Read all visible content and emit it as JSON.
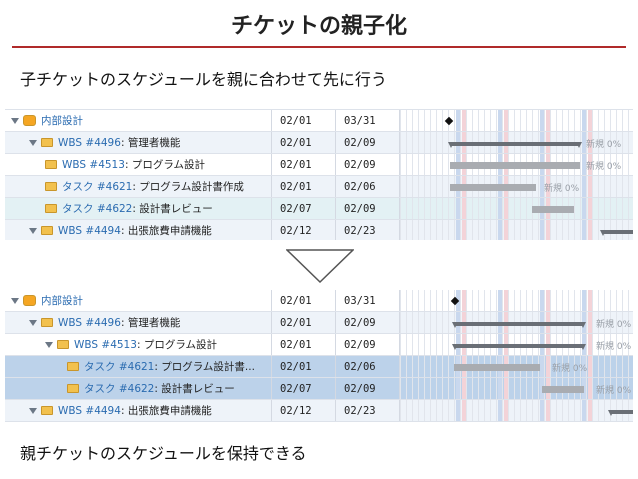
{
  "title": "チケットの親子化",
  "captions": {
    "top": "子チケットのスケジュールを親に合わせて先に行う",
    "bottom": "親チケットのスケジュールを保持できる"
  },
  "colors": {
    "title_rule": "#b02a2a",
    "selected_row": "#bcd2ea",
    "highlight_row": "#e3f1f4"
  },
  "before": {
    "rows": [
      {
        "ident": "",
        "label": "内部設計",
        "start": "02/01",
        "end": "03/31",
        "status": ""
      },
      {
        "ident": "WBS #4496",
        "label": ": 管理者機能",
        "start": "02/01",
        "end": "02/09",
        "status": "新規 0%"
      },
      {
        "ident": "WBS #4513",
        "label": ": プログラム設計",
        "start": "02/01",
        "end": "02/09",
        "status": "新規 0%"
      },
      {
        "ident": "タスク #4621",
        "label": ": プログラム設計書作成",
        "start": "02/01",
        "end": "02/06",
        "status": "新規 0%"
      },
      {
        "ident": "タスク #4622",
        "label": ": 設計書レビュー",
        "start": "02/07",
        "end": "02/09",
        "status": ""
      },
      {
        "ident": "WBS #4494",
        "label": ": 出張旅費申請機能",
        "start": "02/12",
        "end": "02/23",
        "status": ""
      }
    ]
  },
  "after": {
    "rows": [
      {
        "ident": "",
        "label": "内部設計",
        "start": "02/01",
        "end": "03/31",
        "status": ""
      },
      {
        "ident": "WBS #4496",
        "label": ": 管理者機能",
        "start": "02/01",
        "end": "02/09",
        "status": "新規 0%"
      },
      {
        "ident": "WBS #4513",
        "label": ": プログラム設計",
        "start": "02/01",
        "end": "02/09",
        "status": "新規 0%"
      },
      {
        "ident": "タスク #4621",
        "label": ": プログラム設計書...",
        "start": "02/01",
        "end": "02/06",
        "status": "新規 0%"
      },
      {
        "ident": "タスク #4622",
        "label": ": 設計書レビュー",
        "start": "02/07",
        "end": "02/09",
        "status": "新規 0%"
      },
      {
        "ident": "WBS #4494",
        "label": ": 出張旅費申請機能",
        "start": "02/12",
        "end": "02/23",
        "status": ""
      }
    ]
  }
}
